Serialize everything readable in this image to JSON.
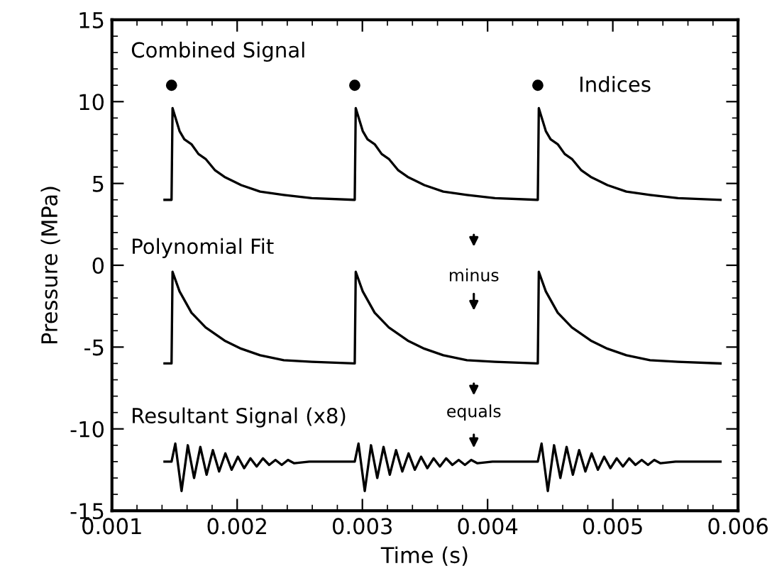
{
  "chart_data": {
    "type": "line",
    "xlabel": "Time (s)",
    "ylabel": "Pressure (MPa)",
    "xlim": [
      0.001,
      0.006
    ],
    "ylim": [
      -15,
      15
    ],
    "xticks": [
      0.001,
      0.002,
      0.003,
      0.004,
      0.005,
      0.006
    ],
    "yticks": [
      -15,
      -10,
      -5,
      0,
      5,
      10,
      15
    ],
    "marker": "none",
    "line_style": "solid",
    "annotations": [
      "minus",
      "equals"
    ],
    "series": [
      {
        "name": "Combined Signal",
        "color": "#000000",
        "x": [
          0.00142,
          0.001476,
          0.001484,
          0.00154,
          0.001578,
          0.001635,
          0.001691,
          0.001748,
          0.001824,
          0.001899,
          0.002032,
          0.002183,
          0.002372,
          0.002596,
          0.002934,
          0.002939,
          0.002947,
          0.003003,
          0.003041,
          0.003098,
          0.003154,
          0.003211,
          0.003287,
          0.003362,
          0.003495,
          0.003646,
          0.003835,
          0.004059,
          0.004396,
          0.004401,
          0.004409,
          0.004465,
          0.004503,
          0.00456,
          0.004616,
          0.004673,
          0.004749,
          0.004824,
          0.004957,
          0.005108,
          0.005297,
          0.005521,
          0.00586
        ],
        "values": [
          4.0,
          4.0,
          9.6,
          8.2,
          7.7,
          7.4,
          6.8,
          6.5,
          5.8,
          5.4,
          4.9,
          4.5,
          4.3,
          4.1,
          4.0,
          4.0,
          9.6,
          8.2,
          7.7,
          7.4,
          6.8,
          6.5,
          5.8,
          5.4,
          4.9,
          4.5,
          4.3,
          4.1,
          4.0,
          4.0,
          9.6,
          8.2,
          7.7,
          7.4,
          6.8,
          6.5,
          5.8,
          5.4,
          4.9,
          4.5,
          4.3,
          4.1,
          4.0
        ]
      },
      {
        "name": "Polynomial Fit",
        "color": "#000000",
        "x": [
          0.00142,
          0.001476,
          0.001484,
          0.00154,
          0.001635,
          0.001748,
          0.001899,
          0.002032,
          0.002183,
          0.002372,
          0.002596,
          0.002934,
          0.002939,
          0.002947,
          0.003003,
          0.003098,
          0.003211,
          0.003362,
          0.003495,
          0.003646,
          0.003835,
          0.004059,
          0.004396,
          0.004401,
          0.004409,
          0.004465,
          0.00456,
          0.004673,
          0.004824,
          0.004957,
          0.005108,
          0.005297,
          0.005521,
          0.00586
        ],
        "values": [
          -6.0,
          -6.0,
          -0.4,
          -1.6,
          -2.9,
          -3.8,
          -4.6,
          -5.1,
          -5.5,
          -5.8,
          -5.9,
          -6.0,
          -6.0,
          -0.4,
          -1.6,
          -2.9,
          -3.8,
          -4.6,
          -5.1,
          -5.5,
          -5.8,
          -5.9,
          -6.0,
          -6.0,
          -0.4,
          -1.6,
          -2.9,
          -3.8,
          -4.6,
          -5.1,
          -5.5,
          -5.8,
          -5.9,
          -6.0
        ]
      },
      {
        "name": "Resultant Signal (x8)",
        "color": "#000000",
        "x": [
          0.00142,
          0.001476,
          0.001506,
          0.001556,
          0.001606,
          0.001656,
          0.001706,
          0.001756,
          0.001806,
          0.001856,
          0.001906,
          0.001956,
          0.002006,
          0.002056,
          0.002106,
          0.002156,
          0.002206,
          0.002256,
          0.002306,
          0.002356,
          0.002406,
          0.002456,
          0.002576,
          0.002776,
          0.002934,
          0.002939,
          0.002969,
          0.003019,
          0.003069,
          0.003119,
          0.003169,
          0.003219,
          0.003269,
          0.003319,
          0.003369,
          0.003419,
          0.003469,
          0.003519,
          0.003569,
          0.003619,
          0.003669,
          0.003719,
          0.003769,
          0.003819,
          0.003869,
          0.003919,
          0.004039,
          0.004239,
          0.004396,
          0.004401,
          0.004431,
          0.004481,
          0.004531,
          0.004581,
          0.004631,
          0.004681,
          0.004731,
          0.004781,
          0.004831,
          0.004881,
          0.004931,
          0.004981,
          0.005031,
          0.005081,
          0.005131,
          0.005181,
          0.005231,
          0.005281,
          0.005331,
          0.005381,
          0.005501,
          0.005701,
          0.00586
        ],
        "values": [
          -12.0,
          -12.0,
          -10.9,
          -13.8,
          -11.0,
          -13.0,
          -11.1,
          -12.8,
          -11.3,
          -12.6,
          -11.5,
          -12.5,
          -11.7,
          -12.4,
          -11.8,
          -12.3,
          -11.8,
          -12.2,
          -11.9,
          -12.2,
          -11.9,
          -12.1,
          -12.0,
          -12.0,
          -12.0,
          -12.0,
          -10.9,
          -13.8,
          -11.0,
          -13.0,
          -11.1,
          -12.8,
          -11.3,
          -12.6,
          -11.5,
          -12.5,
          -11.7,
          -12.4,
          -11.8,
          -12.3,
          -11.8,
          -12.2,
          -11.9,
          -12.2,
          -11.9,
          -12.1,
          -12.0,
          -12.0,
          -12.0,
          -12.0,
          -10.9,
          -13.8,
          -11.0,
          -13.0,
          -11.1,
          -12.8,
          -11.3,
          -12.6,
          -11.5,
          -12.5,
          -11.7,
          -12.4,
          -11.8,
          -12.3,
          -11.8,
          -12.2,
          -11.9,
          -12.2,
          -11.9,
          -12.1,
          -12.0,
          -12.0,
          -12.0
        ]
      },
      {
        "name": "Indices",
        "type": "scatter",
        "marker": "circle",
        "color": "#000000",
        "x": [
          0.001476,
          0.002939,
          0.004401
        ],
        "values": [
          11.0,
          11.0,
          11.0
        ]
      }
    ]
  }
}
